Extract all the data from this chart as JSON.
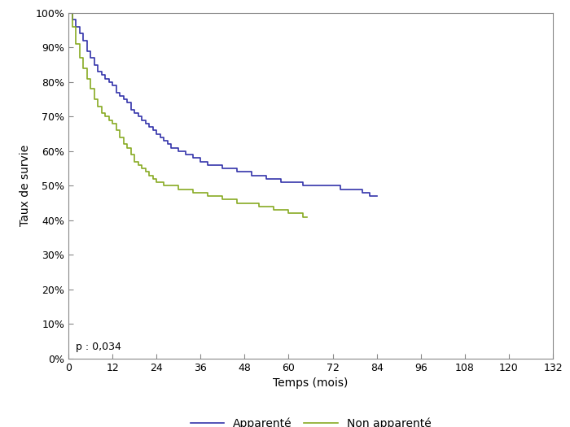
{
  "title": "",
  "xlabel": "Temps (mois)",
  "ylabel": "Taux de survie",
  "xlim": [
    0,
    132
  ],
  "ylim": [
    0,
    1.0
  ],
  "xticks": [
    0,
    12,
    24,
    36,
    48,
    60,
    72,
    84,
    96,
    108,
    120,
    132
  ],
  "yticks": [
    0.0,
    0.1,
    0.2,
    0.3,
    0.4,
    0.5,
    0.6,
    0.7,
    0.8,
    0.9,
    1.0
  ],
  "p_text": "p : 0,034",
  "legend_labels": [
    "Apparenté",
    "Non apparenté"
  ],
  "color_apparente": "#3333aa",
  "color_non_apparente": "#88aa22",
  "line_width": 1.2,
  "apparente": {
    "t": [
      0,
      1,
      2,
      3,
      4,
      5,
      6,
      7,
      8,
      9,
      10,
      11,
      12,
      13,
      14,
      15,
      16,
      17,
      18,
      19,
      20,
      21,
      22,
      23,
      24,
      25,
      26,
      27,
      28,
      30,
      32,
      34,
      36,
      38,
      40,
      42,
      44,
      46,
      48,
      50,
      52,
      54,
      56,
      58,
      60,
      62,
      64,
      66,
      68,
      70,
      72,
      74,
      76,
      78,
      80,
      82,
      84
    ],
    "s": [
      1.0,
      0.98,
      0.96,
      0.94,
      0.92,
      0.89,
      0.87,
      0.85,
      0.83,
      0.82,
      0.81,
      0.8,
      0.79,
      0.77,
      0.76,
      0.75,
      0.74,
      0.72,
      0.71,
      0.7,
      0.69,
      0.68,
      0.67,
      0.66,
      0.65,
      0.64,
      0.63,
      0.62,
      0.61,
      0.6,
      0.59,
      0.58,
      0.57,
      0.56,
      0.56,
      0.55,
      0.55,
      0.54,
      0.54,
      0.53,
      0.53,
      0.52,
      0.52,
      0.51,
      0.51,
      0.51,
      0.5,
      0.5,
      0.5,
      0.5,
      0.5,
      0.49,
      0.49,
      0.49,
      0.48,
      0.47,
      0.47
    ]
  },
  "non_apparente": {
    "t": [
      0,
      1,
      2,
      3,
      4,
      5,
      6,
      7,
      8,
      9,
      10,
      11,
      12,
      13,
      14,
      15,
      16,
      17,
      18,
      19,
      20,
      21,
      22,
      23,
      24,
      26,
      28,
      30,
      32,
      34,
      36,
      38,
      40,
      42,
      44,
      46,
      48,
      50,
      52,
      54,
      56,
      58,
      60,
      62,
      64,
      65
    ],
    "s": [
      1.0,
      0.96,
      0.91,
      0.87,
      0.84,
      0.81,
      0.78,
      0.75,
      0.73,
      0.71,
      0.7,
      0.69,
      0.68,
      0.66,
      0.64,
      0.62,
      0.61,
      0.59,
      0.57,
      0.56,
      0.55,
      0.54,
      0.53,
      0.52,
      0.51,
      0.5,
      0.5,
      0.49,
      0.49,
      0.48,
      0.48,
      0.47,
      0.47,
      0.46,
      0.46,
      0.45,
      0.45,
      0.45,
      0.44,
      0.44,
      0.43,
      0.43,
      0.42,
      0.42,
      0.41,
      0.41
    ]
  }
}
